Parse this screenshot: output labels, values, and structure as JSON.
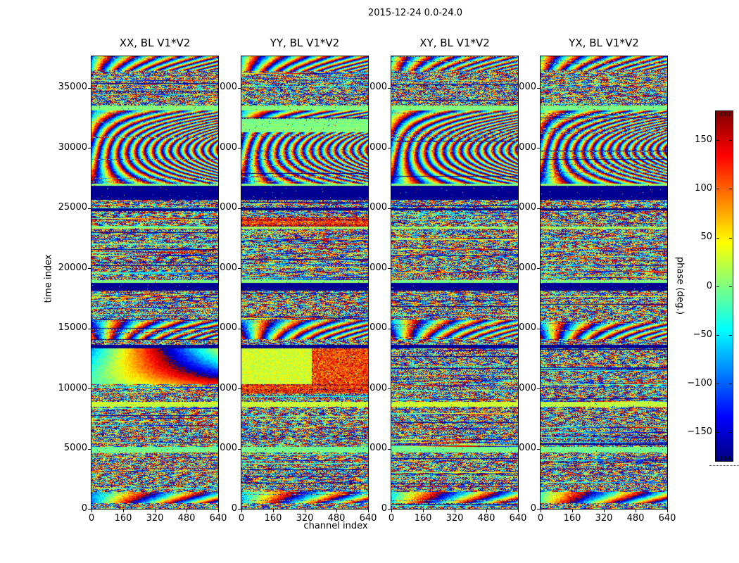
{
  "figure": {
    "title": "2015-12-24 0.0-24.0",
    "background": "#ffffff"
  },
  "panels": [
    {
      "title": "XX, BL V1*V2"
    },
    {
      "title": "YY, BL V1*V2"
    },
    {
      "title": "XY, BL V1*V2"
    },
    {
      "title": "YX, BL V1*V2"
    }
  ],
  "axes": {
    "xlabel": "channel index",
    "ylabel": "time index",
    "x_ticks": [
      0,
      160,
      320,
      480,
      640
    ],
    "y_ticks": [
      0,
      5000,
      10000,
      15000,
      20000,
      25000,
      30000,
      35000
    ],
    "x_range": [
      0,
      640
    ],
    "y_range": [
      0,
      37600
    ]
  },
  "colorbar": {
    "label": "phase (deg.)",
    "ticks": [
      150,
      100,
      50,
      0,
      -50,
      -100,
      -150
    ],
    "tick_labels": [
      "150",
      "100",
      "50",
      "0",
      "−50",
      "−100",
      "−150"
    ],
    "range": [
      -180,
      180
    ],
    "colormap": "jet"
  },
  "colors": {
    "axis": "#000000",
    "text": "#000000",
    "background": "#ffffff"
  },
  "chart_data": {
    "type": "heatmap",
    "title": "2015-12-24 0.0-24.0",
    "panels": [
      "XX, BL V1*V2",
      "YY, BL V1*V2",
      "XY, BL V1*V2",
      "YX, BL V1*V2"
    ],
    "xlabel": "channel index",
    "ylabel": "time index",
    "value_label": "phase (deg.)",
    "x_range": [
      0,
      640
    ],
    "y_range": [
      0,
      37600
    ],
    "value_range": [
      -180,
      180
    ],
    "colormap": "jet",
    "legend_position": "right-colorbar",
    "grid": false,
    "seed": 20151224,
    "bands": [
      [
        0,
        450,
        "noise",
        {}
      ],
      [
        450,
        1400,
        "fringe",
        {
          "k0": 5,
          "kvar": 3
        }
      ],
      [
        1400,
        4650,
        "noise",
        {}
      ],
      [
        4650,
        5150,
        "flat",
        {
          "val": -5
        }
      ],
      [
        5150,
        8450,
        "noise",
        {}
      ],
      [
        8450,
        8900,
        "flat",
        {
          "val": 25
        }
      ],
      [
        8900,
        10350,
        "noise",
        {}
      ],
      [
        10350,
        13350,
        "noise",
        {}
      ],
      [
        13350,
        13620,
        "navy",
        {}
      ],
      [
        13620,
        14100,
        "noise",
        {}
      ],
      [
        14100,
        15700,
        "fringe",
        {
          "k0": 7,
          "kvar": 4
        }
      ],
      [
        15700,
        18100,
        "noise",
        {}
      ],
      [
        18100,
        18800,
        "navy",
        {}
      ],
      [
        18800,
        18980,
        "flat",
        {
          "val": 0
        }
      ],
      [
        18980,
        23250,
        "noise",
        {}
      ],
      [
        23250,
        23420,
        "flat",
        {
          "val": 10
        }
      ],
      [
        23420,
        24220,
        "noise",
        {}
      ],
      [
        24220,
        24780,
        "noise",
        {}
      ],
      [
        24780,
        24980,
        "navy",
        {}
      ],
      [
        24980,
        25660,
        "noise",
        {}
      ],
      [
        25660,
        26820,
        "navy",
        {}
      ],
      [
        26820,
        27020,
        "flat",
        {
          "val": 5
        }
      ],
      [
        27020,
        33080,
        "fringe",
        {
          "k0": 9,
          "kvar": 6,
          "curve": 2
        }
      ],
      [
        33080,
        33480,
        "flat",
        {
          "val": 0
        }
      ],
      [
        33480,
        36400,
        "noise",
        {}
      ],
      [
        36400,
        37600,
        "fringe",
        {
          "k0": 10,
          "kvar": 5
        }
      ]
    ],
    "panel_overrides": {
      "0": [
        [
          10350,
          13350,
          "cyansmooth",
          {}
        ]
      ],
      "1": [
        [
          9600,
          10350,
          "warm",
          {}
        ],
        [
          10350,
          13350,
          "split",
          {
            "xsplit": 0.55
          }
        ],
        [
          23420,
          24220,
          "warm",
          {}
        ],
        [
          31300,
          32400,
          "flat",
          {
            "val": 0
          }
        ]
      ]
    }
  }
}
